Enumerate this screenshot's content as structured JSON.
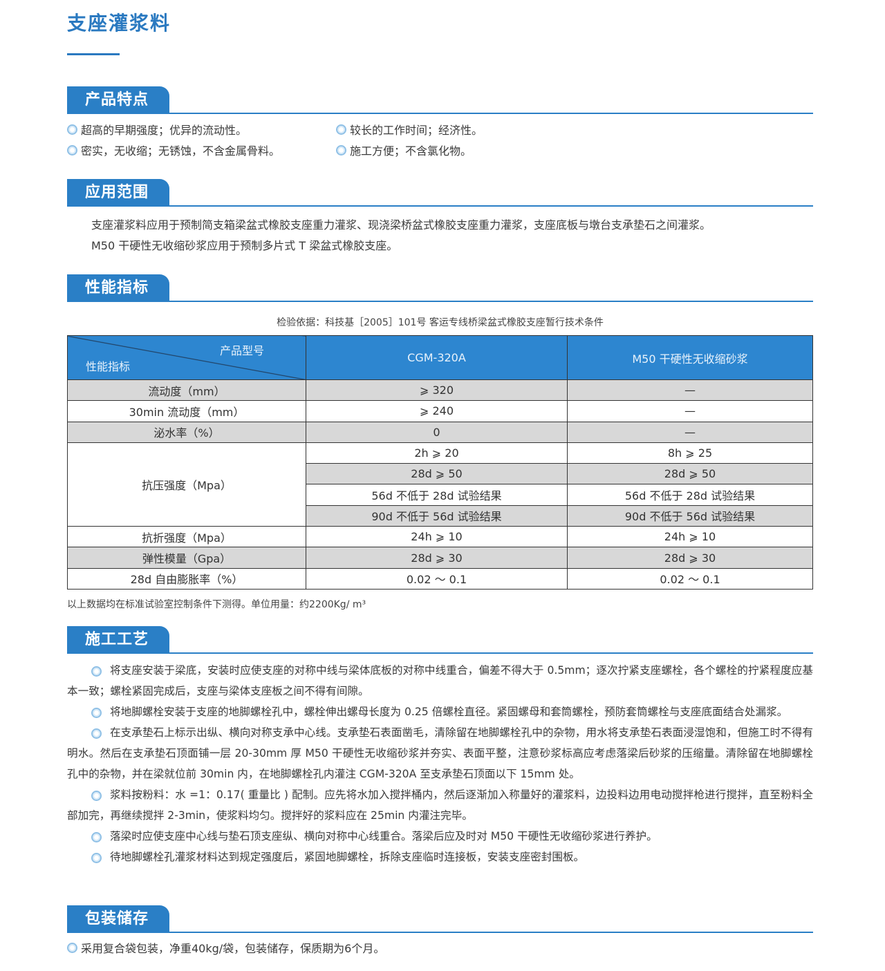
{
  "title": "支座灌浆料",
  "sections": {
    "features": {
      "heading": "产品特点",
      "items": [
        "超高的早期强度；优异的流动性。",
        "较长的工作时间；经济性。",
        "密实，无收缩；无锈蚀，不含金属骨料。",
        "施工方便；不含氯化物。"
      ]
    },
    "scope": {
      "heading": "应用范围",
      "lines": [
        "支座灌浆料应用于预制简支箱梁盆式橡胶支座重力灌浆、现浇梁桥盆式橡胶支座重力灌浆，支座底板与墩台支承垫石之间灌浆。",
        "M50 干硬性无收缩砂浆应用于预制多片式 T 梁盆式橡胶支座。"
      ]
    },
    "performance": {
      "heading": "性能指标",
      "basis": "检验依据：科技基［2005］101号 客运专线桥梁盆式橡胶支座暂行技术条件",
      "table": {
        "corner_top": "产品型号",
        "corner_bottom": "性能指标",
        "col1": "CGM-320A",
        "col2": "M50 干硬性无收缩砂浆",
        "rows": [
          {
            "label": "流动度（mm）",
            "c1": "⩾ 320",
            "c2": "—"
          },
          {
            "label": "30min 流动度（mm）",
            "c1": "⩾ 240",
            "c2": "—"
          },
          {
            "label": "泌水率（%）",
            "c1": "0",
            "c2": "—"
          },
          {
            "label": "抗压强度（Mpa）",
            "sub": [
              {
                "c1": "2h ⩾ 20",
                "c2": "8h ⩾ 25"
              },
              {
                "c1": "28d ⩾ 50",
                "c2": "28d ⩾ 50"
              },
              {
                "c1": "56d 不低于 28d 试验结果",
                "c2": "56d 不低于 28d 试验结果"
              },
              {
                "c1": "90d 不低于 56d 试验结果",
                "c2": "90d 不低于 56d 试验结果"
              }
            ]
          },
          {
            "label": "抗折强度（Mpa）",
            "c1": "24h ⩾ 10",
            "c2": "24h ⩾ 10"
          },
          {
            "label": "弹性模量（Gpa）",
            "c1": "28d ⩾ 30",
            "c2": "28d ⩾ 30"
          },
          {
            "label": "28d 自由膨胀率（%）",
            "c1": "0.02 ～ 0.1",
            "c2": "0.02 ～ 0.1"
          }
        ]
      },
      "footnote": "以上数据均在标准试验室控制条件下测得。单位用量：约2200Kg/ m³"
    },
    "process": {
      "heading": "施工工艺",
      "paragraphs": [
        "将支座安装于梁底，安装时应使支座的对称中线与梁体底板的对称中线重合，偏差不得大于 0.5mm；逐次拧紧支座螺栓，各个螺栓的拧紧程度应基本一致；螺栓紧固完成后，支座与梁体支座板之间不得有间隙。",
        "将地脚螺栓安装于支座的地脚螺栓孔中，螺栓伸出螺母长度为 0.25 倍螺栓直径。紧固螺母和套筒螺栓，预防套筒螺栓与支座底面结合处漏浆。",
        "在支承垫石上标示出纵、横向对称支承中心线。支承垫石表面凿毛，清除留在地脚螺栓孔中的杂物，用水将支承垫石表面浸湿饱和，但施工时不得有明水。然后在支承垫石顶面铺一层 20-30mm 厚 M50 干硬性无收缩砂浆并夯实、表面平整，注意砂浆标高应考虑落梁后砂浆的压缩量。清除留在地脚螺栓孔中的杂物，并在梁就位前 30min 内，在地脚螺栓孔内灌注 CGM-320A 至支承垫石顶面以下 15mm 处。",
        "浆料按粉料：水 =1：0.17( 重量比 ) 配制。应先将水加入搅拌桶内，然后逐渐加入称量好的灌浆料，边投料边用电动搅拌枪进行搅拌，直至粉料全部加完，再继续搅拌 2-3min，使浆料均匀。搅拌好的浆料应在 25min 内灌注完毕。",
        "落梁时应使支座中心线与垫石顶支座纵、横向对称中心线重合。落梁后应及时对 M50 干硬性无收缩砂浆进行养护。",
        "待地脚螺栓孔灌浆材料达到规定强度后，紧固地脚螺栓，拆除支座临时连接板，安装支座密封围板。"
      ]
    },
    "packaging": {
      "heading": "包装储存",
      "items": [
        "采用复合袋包装，净重40kg/袋，包装储存，保质期为6个月。"
      ]
    }
  },
  "colors": {
    "accent": "#2a7fc6",
    "table_header": "#2d86d0",
    "row_gray": "#d8d8d8"
  }
}
